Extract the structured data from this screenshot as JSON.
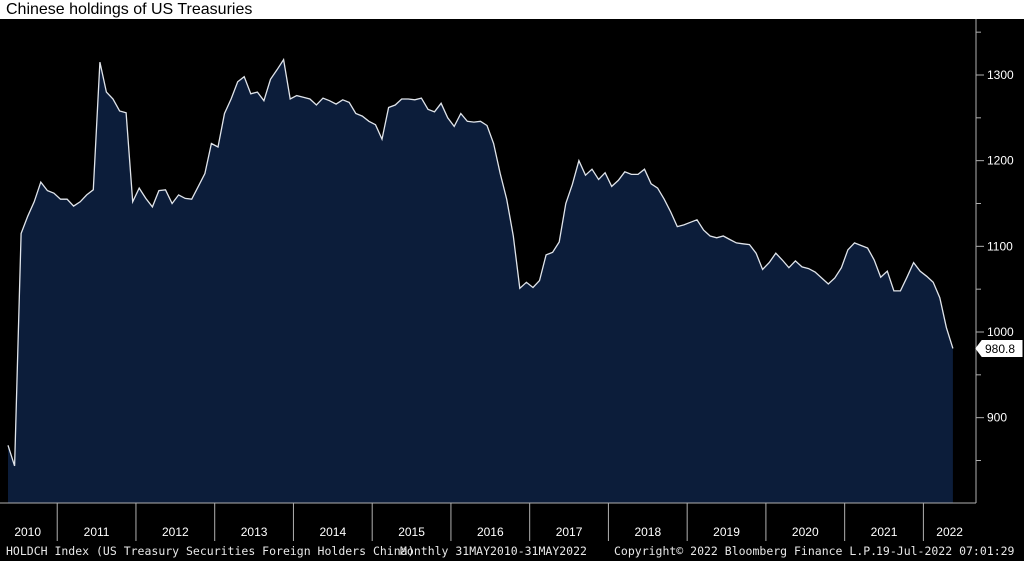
{
  "title": "Chinese holdings of US Treasuries",
  "footer": {
    "index": "HOLDCH Index (US Treasury Securities Foreign Holders China)",
    "period": "Monthly 31MAY2010-31MAY2022",
    "copyright": "Copyright© 2022 Bloomberg Finance L.P.",
    "timestamp": "19-Jul-2022 07:01:29"
  },
  "colors": {
    "background": "#000000",
    "fill": "#0c1d3a",
    "line": "#e0e4ea",
    "axis": "#b0b0b0",
    "text": "#ffffff"
  },
  "chart_data": {
    "type": "area",
    "x_start": "2010-05",
    "x_end": "2022-05",
    "frequency": "monthly",
    "ylim": [
      800,
      1350
    ],
    "y_ticks": [
      900,
      1000,
      1100,
      1200,
      1300
    ],
    "x_ticks": [
      "2010",
      "2011",
      "2012",
      "2013",
      "2014",
      "2015",
      "2016",
      "2017",
      "2018",
      "2019",
      "2020",
      "2021",
      "2022"
    ],
    "last_value_label": "980.8",
    "values": [
      867.7,
      843.7,
      1115.0,
      1135.0,
      1152.0,
      1175.0,
      1165.0,
      1162.0,
      1155.0,
      1155.0,
      1147.0,
      1152.0,
      1160.0,
      1166.0,
      1315.0,
      1280.0,
      1272.0,
      1258.0,
      1256.0,
      1152.0,
      1168.0,
      1156.0,
      1146.0,
      1165.0,
      1166.0,
      1150.0,
      1160.0,
      1156.0,
      1155.0,
      1170.0,
      1185.0,
      1220.0,
      1216.0,
      1255.0,
      1272.0,
      1292.0,
      1298.0,
      1278.0,
      1280.0,
      1270.0,
      1295.0,
      1306.0,
      1318.0,
      1272.0,
      1276.0,
      1274.0,
      1272.0,
      1265.0,
      1273.0,
      1270.0,
      1266.0,
      1271.0,
      1268.0,
      1255.0,
      1252.0,
      1246.0,
      1242.0,
      1225.0,
      1262.0,
      1265.0,
      1272.0,
      1272.0,
      1271.0,
      1273.0,
      1260.0,
      1257.0,
      1267.0,
      1250.0,
      1240.0,
      1255.0,
      1246.0,
      1245.0,
      1246.0,
      1241.0,
      1220.0,
      1185.0,
      1155.0,
      1112.0,
      1051.0,
      1058.0,
      1052.0,
      1060.0,
      1090.0,
      1093.0,
      1105.0,
      1150.0,
      1172.0,
      1200.0,
      1183.0,
      1190.0,
      1178.0,
      1186.0,
      1170.0,
      1177.0,
      1187.0,
      1184.0,
      1184.0,
      1190.0,
      1173.0,
      1168.0,
      1155.0,
      1140.0,
      1123.0,
      1125.0,
      1128.0,
      1131.0,
      1119.0,
      1112.0,
      1110.0,
      1112.0,
      1108.0,
      1104.0,
      1103.0,
      1102.0,
      1092.0,
      1073.0,
      1081.0,
      1092.0,
      1084.0,
      1075.0,
      1083.0,
      1076.0,
      1074.0,
      1070.0,
      1063.0,
      1056.0,
      1063.0,
      1075.0,
      1096.0,
      1104.0,
      1101.0,
      1098.0,
      1084.0,
      1064.0,
      1071.0,
      1048.0,
      1048.0,
      1064.0,
      1081.0,
      1071.0,
      1065.0,
      1058.0,
      1040.0,
      1005.0,
      980.8
    ]
  }
}
